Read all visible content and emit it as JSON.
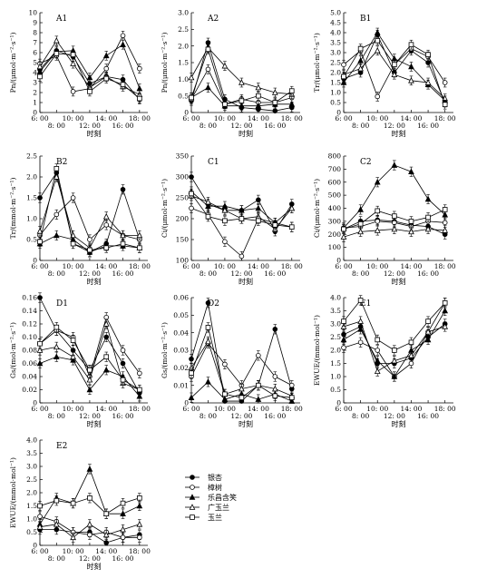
{
  "figure": {
    "x_tick_top": [
      "6: 00",
      "10: 00",
      "14: 00",
      "18: 00"
    ],
    "x_tick_bottom": [
      "8: 00",
      "12: 00",
      "16: 00"
    ],
    "x_label": "时刻",
    "series": [
      {
        "name": "银杏",
        "marker": "circle-filled"
      },
      {
        "name": "樟树",
        "marker": "circle-open"
      },
      {
        "name": "乐昌含笑",
        "marker": "triangle-filled"
      },
      {
        "name": "广玉兰",
        "marker": "triangle-open"
      },
      {
        "name": "玉兰",
        "marker": "square-open"
      }
    ]
  },
  "chart_data": [
    {
      "type": "line",
      "panel": "A1",
      "ylabel": "Pn/(μmol·m⁻²·s⁻¹)",
      "ylim": [
        0,
        10
      ],
      "yticks": [
        "0",
        "1",
        "2",
        "3",
        "4",
        "5",
        "6",
        "7",
        "8",
        "9",
        "10"
      ],
      "x": [
        6,
        8,
        10,
        12,
        14,
        16,
        18
      ],
      "series": [
        {
          "name": "银杏",
          "values": [
            4.3,
            6.2,
            5.6,
            2.9,
            3.6,
            3.3,
            1.3
          ]
        },
        {
          "name": "樟树",
          "values": [
            4.9,
            5.7,
            2.1,
            2.4,
            4.4,
            7.7,
            4.4
          ]
        },
        {
          "name": "乐昌含笑",
          "values": [
            4.1,
            6.1,
            6.2,
            3.5,
            5.7,
            6.8,
            2.4
          ]
        },
        {
          "name": "广玉兰",
          "values": [
            4.6,
            7.2,
            4.9,
            2.5,
            3.6,
            2.6,
            1.8
          ]
        },
        {
          "name": "玉兰",
          "values": [
            3.6,
            5.9,
            5.8,
            2.1,
            3.4,
            2.8,
            1.4
          ]
        }
      ]
    },
    {
      "type": "line",
      "panel": "A2",
      "ylabel": "Pn/(μmol·m⁻²·s⁻¹)",
      "ylim": [
        0,
        3
      ],
      "yticks": [
        "0",
        "0.5",
        "1.0",
        "1.5",
        "2.0",
        "2.5",
        "3.0"
      ],
      "x": [
        6,
        8,
        10,
        12,
        14,
        16,
        18
      ],
      "series": [
        {
          "name": "银杏",
          "values": [
            0.35,
            2.1,
            0.4,
            0.15,
            0.1,
            0.05,
            0.15
          ]
        },
        {
          "name": "樟树",
          "values": [
            0.4,
            1.3,
            0.25,
            0.4,
            0.3,
            0.3,
            0.45
          ]
        },
        {
          "name": "乐昌含笑",
          "values": [
            0.45,
            0.75,
            0.2,
            0.2,
            0.2,
            0.25,
            0.25
          ]
        },
        {
          "name": "广玉兰",
          "values": [
            1.05,
            1.95,
            1.4,
            0.9,
            0.75,
            0.6,
            0.55
          ]
        },
        {
          "name": "玉兰",
          "values": [
            0.45,
            1.9,
            0.25,
            0.35,
            0.5,
            0.3,
            0.65
          ]
        }
      ]
    },
    {
      "type": "line",
      "panel": "B1",
      "ylabel": "Tr/(μmol·m⁻²·s⁻¹)",
      "ylim": [
        0,
        5
      ],
      "yticks": [
        "0",
        "0.5",
        "1.0",
        "1.5",
        "2.0",
        "2.5",
        "3.0",
        "3.5",
        "4.0",
        "4.5",
        "5.0"
      ],
      "x": [
        6,
        8,
        10,
        12,
        14,
        16,
        18
      ],
      "series": [
        {
          "name": "银杏",
          "values": [
            1.7,
            2.0,
            3.9,
            2.0,
            3.1,
            2.5,
            0.5
          ]
        },
        {
          "name": "樟树",
          "values": [
            2.4,
            3.1,
            0.8,
            2.4,
            3.2,
            2.8,
            1.5
          ]
        },
        {
          "name": "乐昌含笑",
          "values": [
            1.5,
            2.6,
            4.0,
            2.7,
            2.3,
            1.4,
            0.6
          ]
        },
        {
          "name": "广玉兰",
          "values": [
            1.9,
            2.2,
            3.1,
            1.9,
            1.6,
            1.5,
            0.7
          ]
        },
        {
          "name": "玉兰",
          "values": [
            1.8,
            3.2,
            3.6,
            2.4,
            3.4,
            2.9,
            0.4
          ]
        }
      ]
    },
    {
      "type": "line",
      "panel": "B2",
      "ylabel": "Tr/(mmol·m⁻²·s⁻¹)",
      "ylim": [
        0,
        2.5
      ],
      "yticks": [
        "0",
        "0.5",
        "1.0",
        "1.5",
        "2.0",
        "2.5"
      ],
      "x": [
        6,
        8,
        10,
        12,
        14,
        16,
        18
      ],
      "series": [
        {
          "name": "银杏",
          "values": [
            1.5,
            2.1,
            0.4,
            0.2,
            0.4,
            1.7,
            0.5
          ]
        },
        {
          "name": "樟树",
          "values": [
            0.6,
            1.1,
            1.5,
            0.5,
            0.85,
            0.6,
            0.5
          ]
        },
        {
          "name": "乐昌含笑",
          "values": [
            0.4,
            0.6,
            0.5,
            0.2,
            0.35,
            0.35,
            0.3
          ]
        },
        {
          "name": "广玉兰",
          "values": [
            0.7,
            2.0,
            0.6,
            0.3,
            1.05,
            0.6,
            0.6
          ]
        },
        {
          "name": "玉兰",
          "values": [
            0.45,
            2.2,
            0.4,
            0.25,
            0.3,
            0.4,
            0.3
          ]
        }
      ]
    },
    {
      "type": "line",
      "panel": "C1",
      "ylabel": "Ci/(μmol·m⁻²·s⁻¹)",
      "ylim": [
        100,
        350
      ],
      "yticks": [
        "100",
        "150",
        "200",
        "250",
        "300",
        "350"
      ],
      "x": [
        6,
        8,
        10,
        12,
        14,
        16,
        18
      ],
      "series": [
        {
          "name": "银杏",
          "values": [
            300,
            235,
            220,
            220,
            245,
            170,
            235
          ]
        },
        {
          "name": "樟树",
          "values": [
            225,
            210,
            145,
            110,
            200,
            190,
            180
          ]
        },
        {
          "name": "乐昌含笑",
          "values": [
            265,
            230,
            230,
            220,
            225,
            190,
            225
          ]
        },
        {
          "name": "广玉兰",
          "values": [
            255,
            240,
            220,
            200,
            205,
            175,
            225
          ]
        },
        {
          "name": "玉兰",
          "values": [
            260,
            205,
            195,
            200,
            195,
            185,
            180
          ]
        }
      ]
    },
    {
      "type": "line",
      "panel": "C2",
      "ylabel": "Ci/(μmol·m⁻²·s⁻¹)",
      "ylim": [
        0,
        800
      ],
      "yticks": [
        "0",
        "100",
        "200",
        "300",
        "400",
        "500",
        "600",
        "700",
        "800"
      ],
      "x": [
        6,
        8,
        10,
        12,
        14,
        16,
        18
      ],
      "series": [
        {
          "name": "银杏",
          "values": [
            240,
            300,
            310,
            300,
            270,
            260,
            200
          ]
        },
        {
          "name": "樟树",
          "values": [
            250,
            260,
            300,
            290,
            260,
            300,
            290
          ]
        },
        {
          "name": "乐昌含笑",
          "values": [
            250,
            390,
            600,
            730,
            680,
            470,
            350
          ]
        },
        {
          "name": "广玉兰",
          "values": [
            180,
            220,
            230,
            240,
            220,
            240,
            230
          ]
        },
        {
          "name": "玉兰",
          "values": [
            240,
            280,
            380,
            340,
            300,
            330,
            390
          ]
        }
      ]
    },
    {
      "type": "line",
      "panel": "D1",
      "ylabel": "Gs/(mol·m⁻²·s⁻¹)",
      "ylim": [
        0,
        0.16
      ],
      "yticks": [
        "0",
        "0.02",
        "0.04",
        "0.06",
        "0.08",
        "0.10",
        "0.12",
        "0.14",
        "0.16"
      ],
      "x": [
        6,
        8,
        10,
        12,
        14,
        16,
        18
      ],
      "series": [
        {
          "name": "银杏",
          "values": [
            0.16,
            0.11,
            0.08,
            0.05,
            0.1,
            0.06,
            0.015
          ]
        },
        {
          "name": "樟树",
          "values": [
            0.09,
            0.11,
            0.1,
            0.04,
            0.13,
            0.08,
            0.045
          ]
        },
        {
          "name": "乐昌含笑",
          "values": [
            0.06,
            0.07,
            0.065,
            0.02,
            0.05,
            0.04,
            0.01
          ]
        },
        {
          "name": "广玉兰",
          "values": [
            0.08,
            0.085,
            0.07,
            0.035,
            0.12,
            0.03,
            0.02
          ]
        },
        {
          "name": "玉兰",
          "values": [
            0.09,
            0.115,
            0.095,
            0.05,
            0.07,
            0.035,
            0.02
          ]
        }
      ]
    },
    {
      "type": "line",
      "panel": "D2",
      "ylabel": "Gs/(mol·m⁻²·s⁻¹)",
      "ylim": [
        0,
        0.06
      ],
      "yticks": [
        "0",
        "0.01",
        "0.02",
        "0.03",
        "0.04",
        "0.05",
        "0.06"
      ],
      "x": [
        6,
        8,
        10,
        12,
        14,
        16,
        18
      ],
      "series": [
        {
          "name": "银杏",
          "values": [
            0.025,
            0.057,
            0.001,
            0.001,
            0.01,
            0.042,
            0.008
          ]
        },
        {
          "name": "樟树",
          "values": [
            0.015,
            0.034,
            0.022,
            0.01,
            0.027,
            0.015,
            0.01
          ]
        },
        {
          "name": "乐昌含笑",
          "values": [
            0.003,
            0.012,
            0.002,
            0.005,
            0.002,
            0.005,
            0.001
          ]
        },
        {
          "name": "广玉兰",
          "values": [
            0.02,
            0.035,
            0.005,
            0.008,
            0.01,
            0.008,
            0.004
          ]
        },
        {
          "name": "玉兰",
          "values": [
            0.017,
            0.043,
            0.005,
            0.003,
            0.01,
            0.004,
            0.003
          ]
        }
      ]
    },
    {
      "type": "line",
      "panel": "E1",
      "ylabel": "EWUE/(mmol·mol⁻¹)",
      "ylim": [
        0,
        4
      ],
      "yticks": [
        "0",
        "0.5",
        "1.0",
        "1.5",
        "2.0",
        "2.5",
        "3.0",
        "3.5",
        "4.0"
      ],
      "x": [
        6,
        8,
        10,
        12,
        14,
        16,
        18
      ],
      "series": [
        {
          "name": "银杏",
          "values": [
            2.6,
            2.9,
            1.5,
            1.5,
            1.7,
            2.5,
            3.0
          ]
        },
        {
          "name": "樟树",
          "values": [
            2.1,
            2.3,
            2.0,
            1.0,
            1.5,
            2.7,
            3.8
          ]
        },
        {
          "name": "乐昌含笑",
          "values": [
            2.4,
            2.8,
            1.6,
            1.0,
            2.0,
            2.4,
            3.5
          ]
        },
        {
          "name": "广玉兰",
          "values": [
            2.9,
            3.1,
            1.2,
            1.6,
            1.8,
            2.7,
            2.9
          ]
        },
        {
          "name": "玉兰",
          "values": [
            3.1,
            3.9,
            2.4,
            2.0,
            2.3,
            3.1,
            3.8
          ]
        }
      ]
    },
    {
      "type": "line",
      "panel": "E2",
      "ylabel": "EWUE/(mmol·mol⁻¹)",
      "ylim": [
        0,
        4
      ],
      "yticks": [
        "0",
        "0.5",
        "1.0",
        "1.5",
        "2.0",
        "2.5",
        "3.0",
        "3.5",
        "4.0"
      ],
      "x": [
        6,
        8,
        10,
        12,
        14,
        16,
        18
      ],
      "series": [
        {
          "name": "银杏",
          "values": [
            0.6,
            0.6,
            0.5,
            0.5,
            0.1,
            0.3,
            0.4
          ]
        },
        {
          "name": "樟树",
          "values": [
            1.1,
            0.9,
            0.5,
            0.4,
            0.5,
            0.3,
            0.3
          ]
        },
        {
          "name": "乐昌含笑",
          "values": [
            0.8,
            1.8,
            1.6,
            2.9,
            1.2,
            1.2,
            1.5
          ]
        },
        {
          "name": "广玉兰",
          "values": [
            0.7,
            0.8,
            0.3,
            0.8,
            0.4,
            0.6,
            0.8
          ]
        },
        {
          "name": "玉兰",
          "values": [
            1.5,
            1.7,
            1.6,
            1.8,
            1.2,
            1.6,
            1.8
          ]
        }
      ]
    }
  ]
}
